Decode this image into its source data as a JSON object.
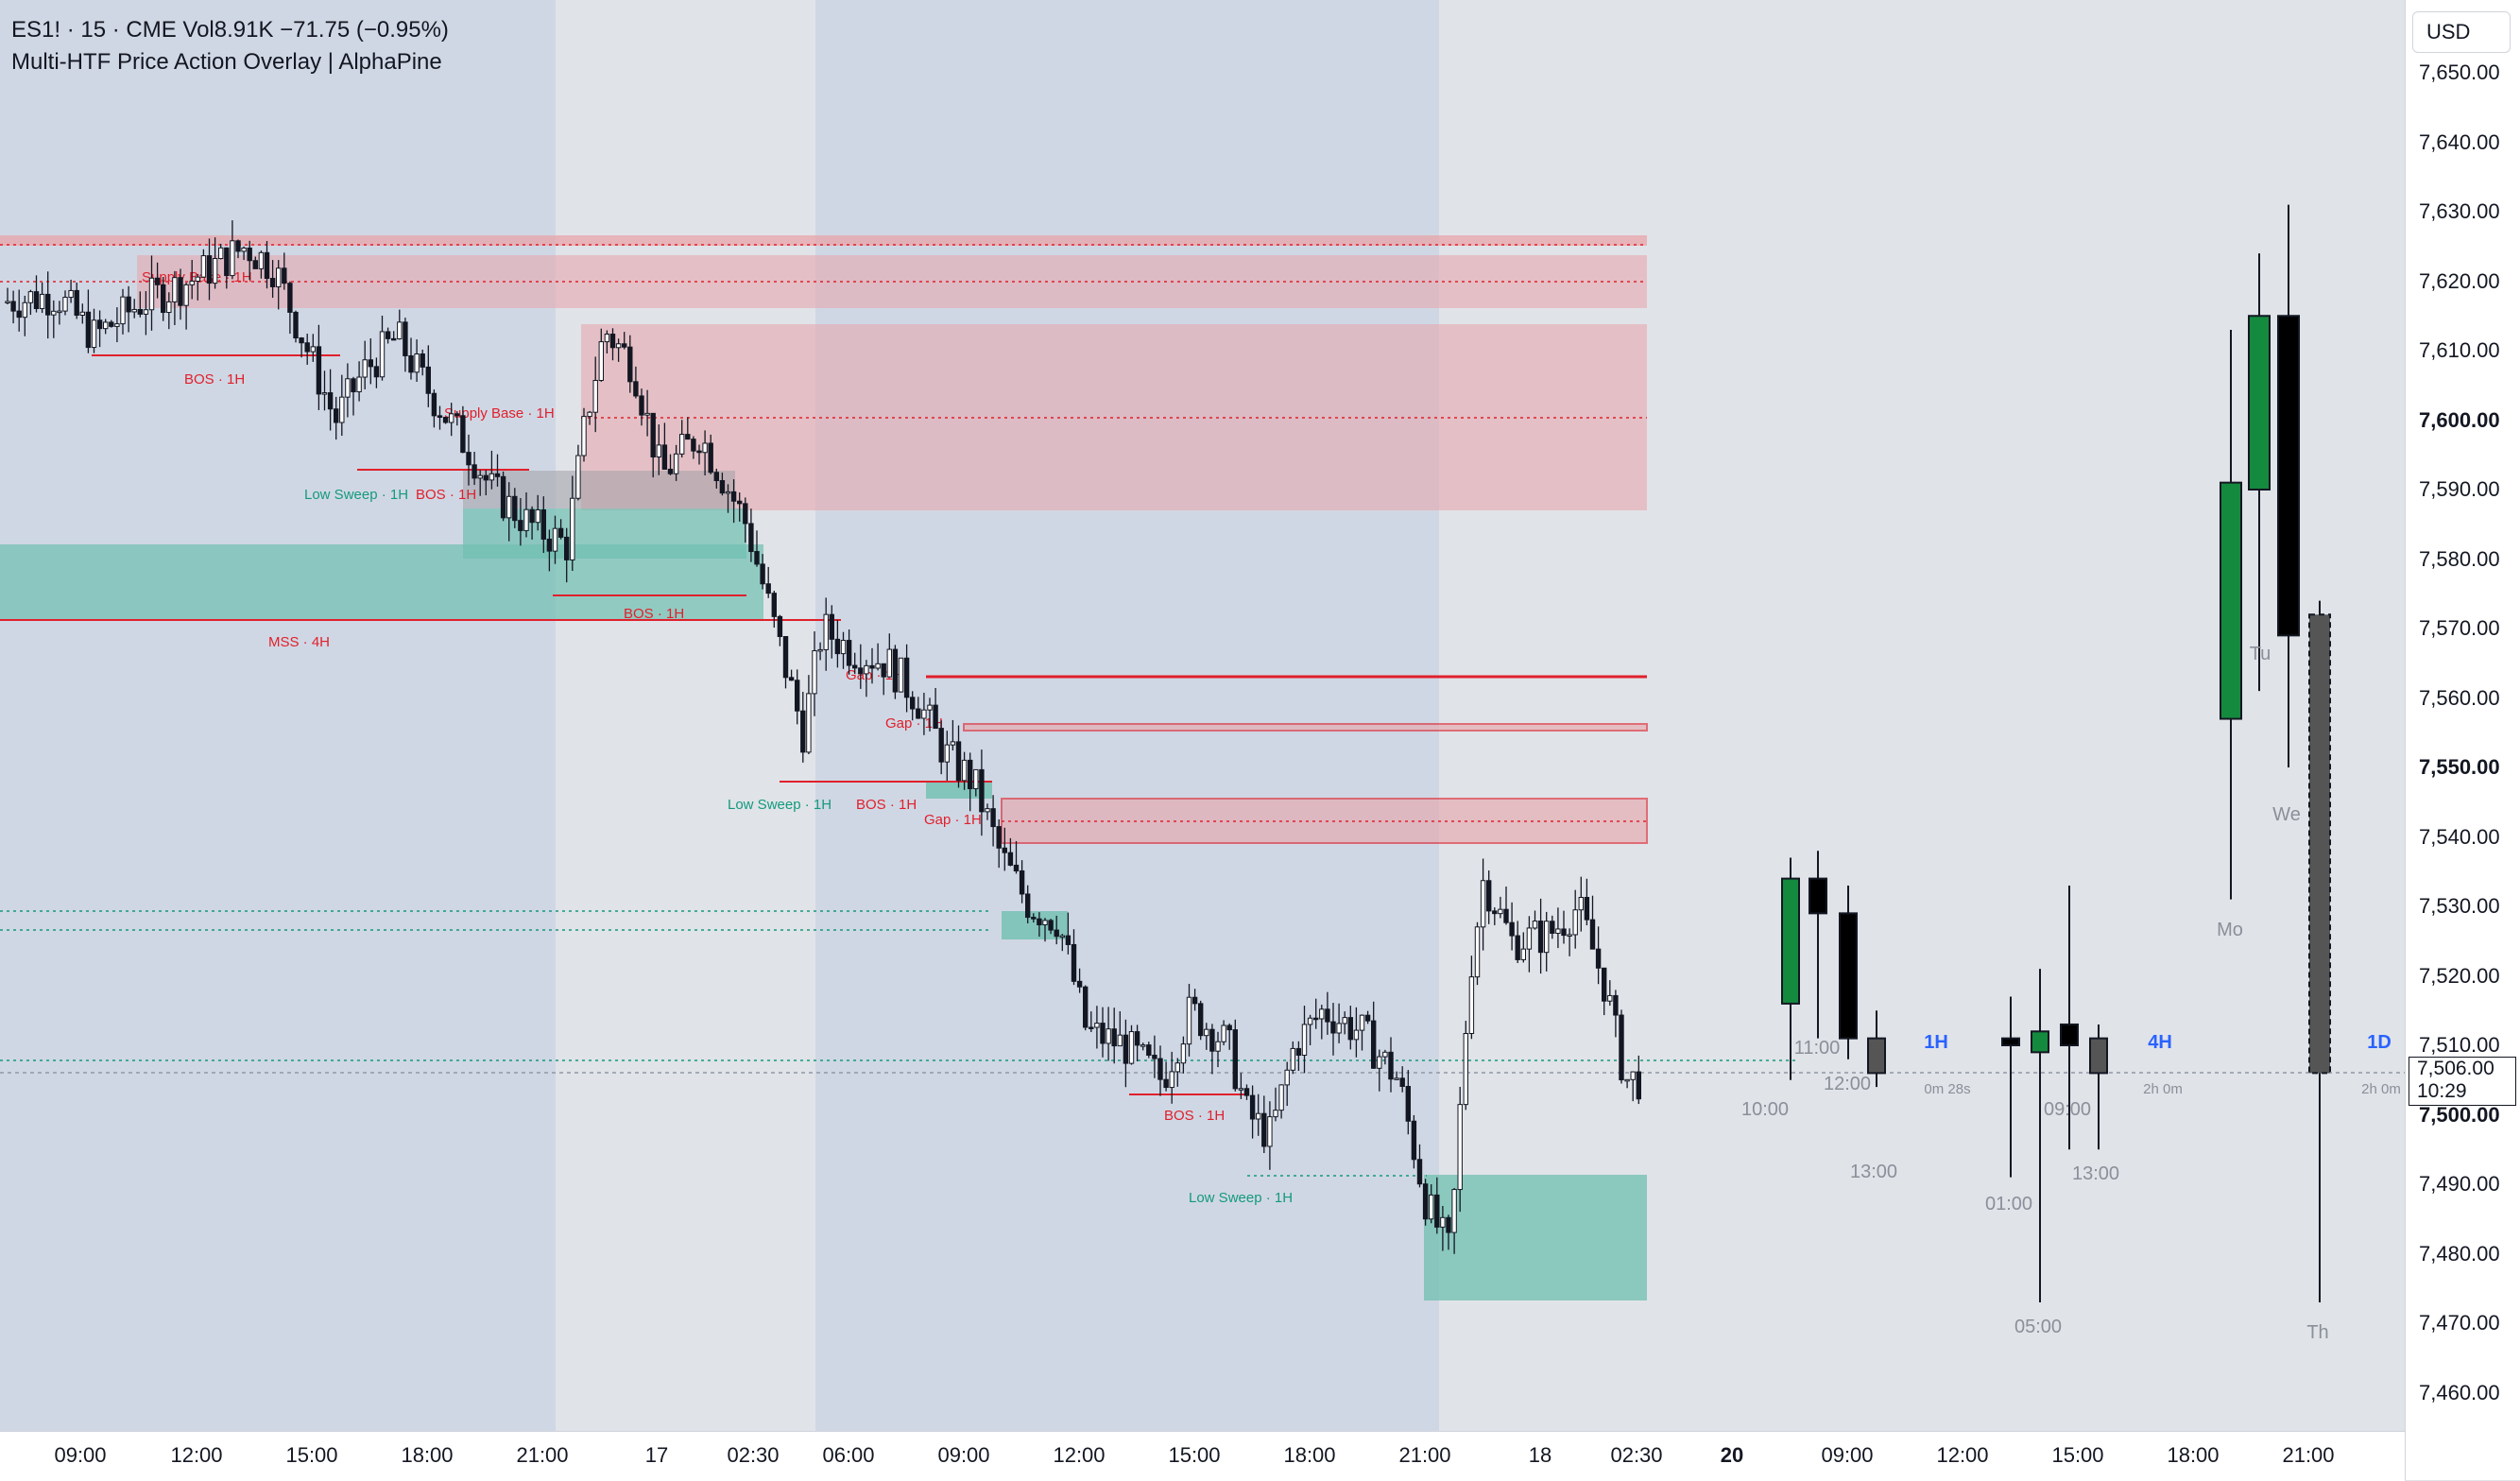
{
  "header": {
    "symbol_line": "ES1! · 15 · CME  Vol8.91K  −71.75 (−0.95%)",
    "indicator_name": "Multi-HTF Price Action Overlay | AlphaPine"
  },
  "currency_button": "USD",
  "current_price": {
    "value": "7,506.00",
    "countdown": "10:29"
  },
  "y_axis": {
    "ticks": [
      "7,650.00",
      "7,640.00",
      "7,630.00",
      "7,620.00",
      "7,610.00",
      "7,600.00",
      "7,590.00",
      "7,580.00",
      "7,570.00",
      "7,560.00",
      "7,550.00",
      "7,540.00",
      "7,530.00",
      "7,520.00",
      "7,510.00",
      "7,500.00",
      "7,490.00",
      "7,480.00",
      "7,470.00",
      "7,460.00"
    ],
    "bold_ticks": [
      "7,600.00",
      "7,550.00",
      "7,500.00"
    ]
  },
  "x_axis": {
    "ticks": [
      "09:00",
      "12:00",
      "15:00",
      "18:00",
      "21:00",
      "17",
      "02:30",
      "06:00",
      "09:00",
      "12:00",
      "15:00",
      "18:00",
      "21:00",
      "18",
      "02:30",
      "20",
      "09:00",
      "12:00",
      "15:00",
      "18:00",
      "21:00"
    ],
    "bold_ticks": [
      "20"
    ]
  },
  "structure_labels": [
    "Supply Base · 1H",
    "BOS · 1H",
    "Supply Base · 1H",
    "Low Sweep · 1H",
    "BOS · 1H",
    "BOS · 1H",
    "MSS · 4H",
    "Gap · 1H",
    "Gap · 1H",
    "Low Sweep · 1H",
    "BOS · 1H",
    "Gap · 1H",
    "BOS · 1H",
    "Low Sweep · 1H"
  ],
  "htf_panels": [
    {
      "label": "1H",
      "countdown": "0m 28s",
      "time_labels": [
        "10:00",
        "11:00",
        "12:00",
        "13:00"
      ]
    },
    {
      "label": "4H",
      "countdown": "2h 0m",
      "time_labels": [
        "01:00",
        "05:00",
        "09:00",
        "13:00"
      ]
    },
    {
      "label": "1D",
      "countdown": "2h 0m",
      "time_labels": [
        "Mo",
        "Tu",
        "We",
        "Th"
      ]
    }
  ],
  "colors": {
    "bull_htf": "#148a3e",
    "bear_htf": "#000000",
    "supply_zone": "#e8a4aa",
    "demand_zone": "#6fbfb0",
    "bos_line": "#e0202c",
    "sweep_label": "#139a7d",
    "htf_label": "#2962ff",
    "session_shade": "#d0d7e4"
  }
}
